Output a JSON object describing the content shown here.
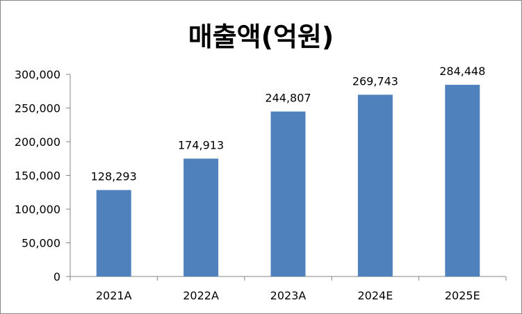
{
  "chart_data": {
    "type": "bar",
    "title": "매출액(억원)",
    "categories": [
      "2021A",
      "2022A",
      "2023A",
      "2024E",
      "2025E"
    ],
    "values": [
      128293,
      174913,
      244807,
      269743,
      284448
    ],
    "value_labels": [
      "128,293",
      "174,913",
      "244,807",
      "269,743",
      "284,448"
    ],
    "ylim": [
      0,
      300000
    ],
    "yticks": [
      0,
      50000,
      100000,
      150000,
      200000,
      250000,
      300000
    ],
    "ytick_labels": [
      "0",
      "50,000",
      "100,000",
      "150,000",
      "200,000",
      "250,000",
      "300,000"
    ],
    "grid": false,
    "legend": "none",
    "colors": {
      "bar": "#4F81BD",
      "axis": "#868686"
    }
  }
}
